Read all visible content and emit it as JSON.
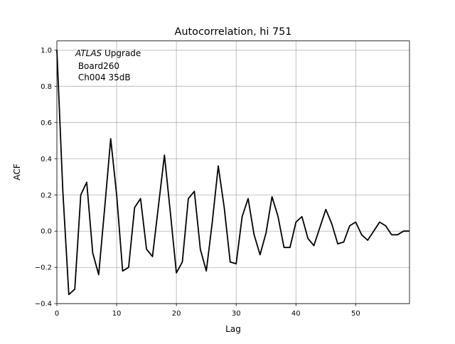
{
  "chart_data": {
    "type": "line",
    "title": "Autocorrelation, hi 751",
    "xlabel": "Lag",
    "ylabel": "ACF",
    "xlim": [
      0,
      59
    ],
    "ylim": [
      -0.4,
      1.05
    ],
    "grid": true,
    "xticks": [
      0,
      10,
      20,
      30,
      40,
      50
    ],
    "xtick_labels": [
      "0",
      "10",
      "20",
      "30",
      "40",
      "50"
    ],
    "yticks": [
      -0.4,
      -0.2,
      0.0,
      0.2,
      0.4,
      0.6,
      0.8,
      1.0
    ],
    "ytick_labels": [
      "−0.4",
      "−0.2",
      "0.0",
      "0.2",
      "0.4",
      "0.6",
      "0.8",
      "1.0"
    ],
    "annotation": {
      "italic": "ATLAS",
      "line1_rest": " Upgrade",
      "line2": " Board260",
      "line3": " Ch004 35dB"
    },
    "line_color": "#000000",
    "grid_color": "#b0b0b0",
    "series": [
      {
        "x": [
          0,
          1,
          2,
          3,
          4,
          5,
          6,
          7,
          8,
          9,
          10,
          11,
          12,
          13,
          14,
          15,
          16,
          17,
          18,
          19,
          20,
          21,
          22,
          23,
          24,
          25,
          26,
          27,
          28,
          29,
          30,
          31,
          32,
          33,
          34,
          35,
          36,
          37,
          38,
          39,
          40,
          41,
          42,
          43,
          44,
          45,
          46,
          47,
          48,
          49,
          50,
          51,
          52,
          53,
          54,
          55,
          56,
          57,
          58,
          59
        ],
        "values": [
          1.0,
          0.22,
          -0.35,
          -0.32,
          0.2,
          0.27,
          -0.12,
          -0.24,
          0.13,
          0.51,
          0.2,
          -0.22,
          -0.2,
          0.13,
          0.18,
          -0.1,
          -0.14,
          0.14,
          0.42,
          0.1,
          -0.23,
          -0.17,
          0.18,
          0.22,
          -0.1,
          -0.22,
          0.05,
          0.36,
          0.13,
          -0.17,
          -0.18,
          0.08,
          0.18,
          -0.02,
          -0.13,
          -0.01,
          0.19,
          0.08,
          -0.09,
          -0.09,
          0.05,
          0.08,
          -0.04,
          -0.08,
          0.02,
          0.12,
          0.04,
          -0.07,
          -0.06,
          0.03,
          0.05,
          -0.02,
          -0.05,
          0.0,
          0.05,
          0.03,
          -0.02,
          -0.02,
          0.0,
          0.0
        ]
      }
    ]
  }
}
